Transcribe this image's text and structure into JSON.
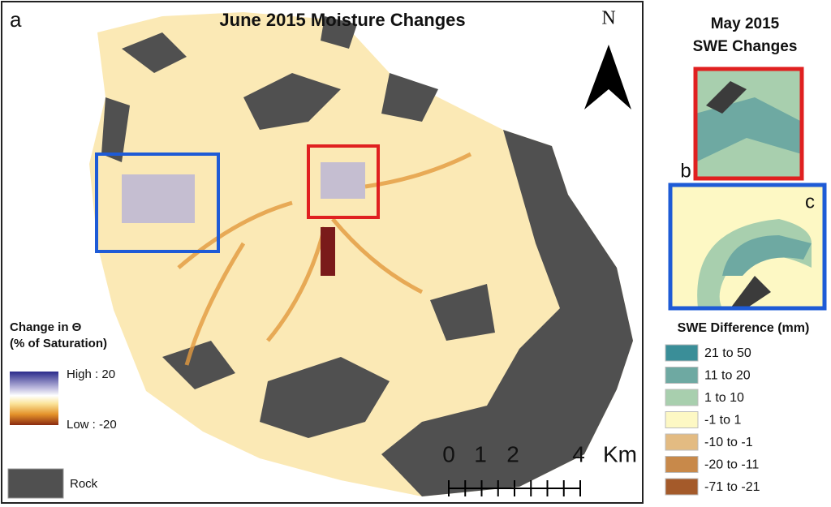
{
  "panel_a": {
    "label": "a",
    "title": "June 2015 Moisture Changes",
    "north": "N",
    "legend": {
      "title_line1": "Change in Θ",
      "title_line2": "(% of Saturation)",
      "high": "High : 20",
      "low": "Low : -20",
      "rock": "Rock"
    },
    "scale": {
      "labels": [
        "0",
        "1",
        "2",
        "4"
      ],
      "unit": "Km"
    }
  },
  "panel_right": {
    "title_line1": "May 2015",
    "title_line2": "SWE Changes",
    "label_b": "b",
    "label_c": "c",
    "legend": {
      "title": "SWE Difference (mm)",
      "items": [
        {
          "label": "21 to 50",
          "color": "#3a8e98"
        },
        {
          "label": "11 to 20",
          "color": "#6ea9a2"
        },
        {
          "label": "1 to 10",
          "color": "#a8cfae"
        },
        {
          "label": "-1 to 1",
          "color": "#fdf8c4"
        },
        {
          "label": "-10 to -1",
          "color": "#e3bb82"
        },
        {
          "label": "-20 to -11",
          "color": "#c8894a"
        },
        {
          "label": "-71 to -21",
          "color": "#a45a2a"
        }
      ]
    }
  }
}
